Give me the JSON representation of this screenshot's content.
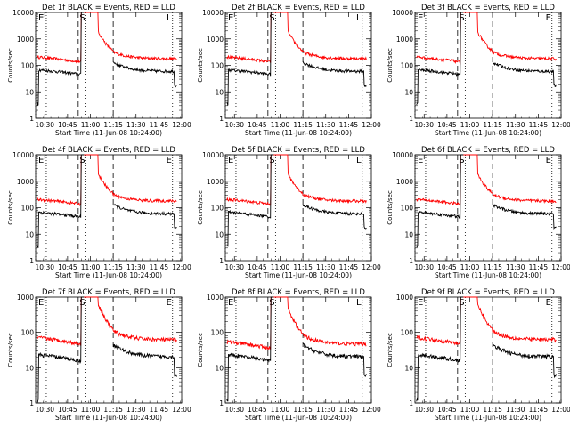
{
  "chart_data": [
    {
      "type": "line",
      "title": "Det 1f BLACK = Events, RED = LLD",
      "xlabel": "Start Time (11-Jun-08 10:24:00)",
      "ylabel": "Counts/sec",
      "yscale": "log",
      "ylim": [
        1,
        10000
      ],
      "xlim": [
        "10:24",
        "12:00"
      ],
      "x_ticks": [
        "10:30",
        "10:45",
        "11:00",
        "11:15",
        "11:30",
        "11:45",
        "12:00"
      ],
      "y_ticks": [
        "1",
        "10",
        "100",
        "1000",
        "10000"
      ],
      "markers": [
        {
          "label": "E",
          "time": "10:24",
          "style": "dotted"
        },
        {
          "label": "",
          "time": "10:31",
          "style": "dotted"
        },
        {
          "label": "",
          "time": "10:52",
          "style": "dashed"
        },
        {
          "label": "S",
          "time": "10:57",
          "style": "dotted"
        },
        {
          "label": "",
          "time": "11:15",
          "style": "dashed"
        },
        {
          "label": "L",
          "time": "11:54",
          "style": "dotted"
        }
      ],
      "series": [
        {
          "name": "LLD",
          "color": "#ff0000",
          "level": "high"
        },
        {
          "name": "Events",
          "color": "#000000",
          "level": "low"
        }
      ]
    },
    {
      "type": "line",
      "title": "Det 2f BLACK = Events, RED = LLD",
      "xlabel": "Start Time (11-Jun-08 10:24:00)",
      "ylabel": "Counts/sec",
      "yscale": "log",
      "ylim": [
        1,
        10000
      ],
      "xlim": [
        "10:24",
        "12:00"
      ],
      "x_ticks": [
        "10:30",
        "10:45",
        "11:00",
        "11:15",
        "11:30",
        "11:45",
        "12:00"
      ],
      "y_ticks": [
        "1",
        "10",
        "100",
        "1000",
        "10000"
      ],
      "markers": [
        {
          "label": "E",
          "time": "10:24",
          "style": "dotted"
        },
        {
          "label": "",
          "time": "10:31",
          "style": "dotted"
        },
        {
          "label": "",
          "time": "10:52",
          "style": "dashed"
        },
        {
          "label": "S",
          "time": "10:57",
          "style": "dotted"
        },
        {
          "label": "",
          "time": "11:15",
          "style": "dashed"
        },
        {
          "label": "L",
          "time": "11:54",
          "style": "dotted"
        }
      ],
      "series": [
        {
          "name": "LLD",
          "color": "#ff0000",
          "level": "high"
        },
        {
          "name": "Events",
          "color": "#000000",
          "level": "low"
        }
      ]
    },
    {
      "type": "line",
      "title": "Det 3f BLACK = Events, RED = LLD",
      "xlabel": "Start Time (11-Jun-08 10:24:00)",
      "ylabel": "Counts/sec",
      "yscale": "log",
      "ylim": [
        1,
        10000
      ],
      "xlim": [
        "10:24",
        "12:00"
      ],
      "x_ticks": [
        "10:30",
        "10:45",
        "11:00",
        "11:15",
        "11:30",
        "11:45",
        "12:00"
      ],
      "y_ticks": [
        "1",
        "10",
        "100",
        "1000",
        "10000"
      ],
      "markers": [
        {
          "label": "E",
          "time": "10:24",
          "style": "dotted"
        },
        {
          "label": "",
          "time": "10:31",
          "style": "dotted"
        },
        {
          "label": "",
          "time": "10:52",
          "style": "dashed"
        },
        {
          "label": "S",
          "time": "10:57",
          "style": "dotted"
        },
        {
          "label": "",
          "time": "11:15",
          "style": "dashed"
        },
        {
          "label": "E",
          "time": "11:54",
          "style": "dotted"
        }
      ],
      "series": [
        {
          "name": "LLD",
          "color": "#ff0000",
          "level": "high"
        },
        {
          "name": "Events",
          "color": "#000000",
          "level": "low"
        }
      ]
    },
    {
      "type": "line",
      "title": "Det 4f BLACK = Events, RED = LLD",
      "xlabel": "Start Time (11-Jun-08 10:24:00)",
      "ylabel": "Counts/sec",
      "yscale": "log",
      "ylim": [
        1,
        10000
      ],
      "xlim": [
        "10:24",
        "12:00"
      ],
      "x_ticks": [
        "10:30",
        "10:45",
        "11:00",
        "11:15",
        "11:30",
        "11:45",
        "12:00"
      ],
      "y_ticks": [
        "1",
        "10",
        "100",
        "1000",
        "10000"
      ],
      "markers": [
        {
          "label": "E",
          "time": "10:24",
          "style": "dotted"
        },
        {
          "label": "",
          "time": "10:31",
          "style": "dotted"
        },
        {
          "label": "",
          "time": "10:52",
          "style": "dashed"
        },
        {
          "label": "S",
          "time": "10:57",
          "style": "dotted"
        },
        {
          "label": "",
          "time": "11:15",
          "style": "dashed"
        },
        {
          "label": "E",
          "time": "11:54",
          "style": "dotted"
        }
      ],
      "series": [
        {
          "name": "LLD",
          "color": "#ff0000",
          "level": "high"
        },
        {
          "name": "Events",
          "color": "#000000",
          "level": "low"
        }
      ]
    },
    {
      "type": "line",
      "title": "Det 5f BLACK = Events, RED = LLD",
      "xlabel": "Start Time (11-Jun-08 10:24:00)",
      "ylabel": "Counts/sec",
      "yscale": "log",
      "ylim": [
        1,
        10000
      ],
      "xlim": [
        "10:24",
        "12:00"
      ],
      "x_ticks": [
        "10:30",
        "10:45",
        "11:00",
        "11:15",
        "11:30",
        "11:45",
        "12:00"
      ],
      "y_ticks": [
        "1",
        "10",
        "100",
        "1000",
        "10000"
      ],
      "markers": [
        {
          "label": "E",
          "time": "10:24",
          "style": "dotted"
        },
        {
          "label": "",
          "time": "10:31",
          "style": "dotted"
        },
        {
          "label": "",
          "time": "10:52",
          "style": "dashed"
        },
        {
          "label": "S",
          "time": "10:57",
          "style": "dotted"
        },
        {
          "label": "",
          "time": "11:15",
          "style": "dashed"
        },
        {
          "label": "L",
          "time": "11:54",
          "style": "dotted"
        }
      ],
      "series": [
        {
          "name": "LLD",
          "color": "#ff0000",
          "level": "high"
        },
        {
          "name": "Events",
          "color": "#000000",
          "level": "low"
        }
      ]
    },
    {
      "type": "line",
      "title": "Det 6f BLACK = Events, RED = LLD",
      "xlabel": "Start Time (11-Jun-08 10:24:00)",
      "ylabel": "Counts/sec",
      "yscale": "log",
      "ylim": [
        1,
        10000
      ],
      "xlim": [
        "10:24",
        "12:00"
      ],
      "x_ticks": [
        "10:30",
        "10:45",
        "11:00",
        "11:15",
        "11:30",
        "11:45",
        "12:00"
      ],
      "y_ticks": [
        "1",
        "10",
        "100",
        "1000",
        "10000"
      ],
      "markers": [
        {
          "label": "E",
          "time": "10:24",
          "style": "dotted"
        },
        {
          "label": "",
          "time": "10:31",
          "style": "dotted"
        },
        {
          "label": "",
          "time": "10:52",
          "style": "dashed"
        },
        {
          "label": "S",
          "time": "10:57",
          "style": "dotted"
        },
        {
          "label": "",
          "time": "11:15",
          "style": "dashed"
        },
        {
          "label": "E",
          "time": "11:54",
          "style": "dotted"
        }
      ],
      "series": [
        {
          "name": "LLD",
          "color": "#ff0000",
          "level": "high"
        },
        {
          "name": "Events",
          "color": "#000000",
          "level": "low"
        }
      ]
    },
    {
      "type": "line",
      "title": "Det 7f BLACK = Events, RED = LLD",
      "xlabel": "Start Time (11-Jun-08 10:24:00)",
      "ylabel": "Counts/sec",
      "yscale": "log",
      "ylim": [
        1,
        1000
      ],
      "xlim": [
        "10:24",
        "12:00"
      ],
      "x_ticks": [
        "10:30",
        "10:45",
        "11:00",
        "11:15",
        "11:30",
        "11:45",
        "12:00"
      ],
      "y_ticks": [
        "1",
        "10",
        "100",
        "1000"
      ],
      "markers": [
        {
          "label": "E",
          "time": "10:24",
          "style": "dotted"
        },
        {
          "label": "",
          "time": "10:31",
          "style": "dotted"
        },
        {
          "label": "",
          "time": "10:52",
          "style": "dashed"
        },
        {
          "label": "S",
          "time": "10:57",
          "style": "dotted"
        },
        {
          "label": "",
          "time": "11:15",
          "style": "dashed"
        },
        {
          "label": "E",
          "time": "11:54",
          "style": "dotted"
        }
      ],
      "series": [
        {
          "name": "LLD",
          "color": "#ff0000",
          "level": "mid"
        },
        {
          "name": "Events",
          "color": "#000000",
          "level": "low"
        }
      ]
    },
    {
      "type": "line",
      "title": "Det 8f BLACK = Events, RED = LLD",
      "xlabel": "Start Time (11-Jun-08 10:24:00)",
      "ylabel": "Counts/sec",
      "yscale": "log",
      "ylim": [
        1,
        1000
      ],
      "xlim": [
        "10:24",
        "12:00"
      ],
      "x_ticks": [
        "10:30",
        "10:45",
        "11:00",
        "11:15",
        "11:30",
        "11:45",
        "12:00"
      ],
      "y_ticks": [
        "1",
        "10",
        "100",
        "1000"
      ],
      "markers": [
        {
          "label": "E",
          "time": "10:24",
          "style": "dotted"
        },
        {
          "label": "",
          "time": "10:31",
          "style": "dotted"
        },
        {
          "label": "",
          "time": "10:52",
          "style": "dashed"
        },
        {
          "label": "S",
          "time": "10:57",
          "style": "dotted"
        },
        {
          "label": "",
          "time": "11:15",
          "style": "dashed"
        },
        {
          "label": "L",
          "time": "11:54",
          "style": "dotted"
        }
      ],
      "series": [
        {
          "name": "LLD",
          "color": "#ff0000",
          "level": "high"
        },
        {
          "name": "Events",
          "color": "#000000",
          "level": "low"
        }
      ]
    },
    {
      "type": "line",
      "title": "Det 9f BLACK = Events, RED = LLD",
      "xlabel": "Start Time (11-Jun-08 10:24:00)",
      "ylabel": "Counts/sec",
      "yscale": "log",
      "ylim": [
        1,
        1000
      ],
      "xlim": [
        "10:24",
        "12:00"
      ],
      "x_ticks": [
        "10:30",
        "10:45",
        "11:00",
        "11:15",
        "11:30",
        "11:45",
        "12:00"
      ],
      "y_ticks": [
        "1",
        "10",
        "100",
        "1000"
      ],
      "markers": [
        {
          "label": "E",
          "time": "10:24",
          "style": "dotted"
        },
        {
          "label": "",
          "time": "10:31",
          "style": "dotted"
        },
        {
          "label": "",
          "time": "10:52",
          "style": "dashed"
        },
        {
          "label": "S",
          "time": "10:57",
          "style": "dotted"
        },
        {
          "label": "",
          "time": "11:15",
          "style": "dashed"
        },
        {
          "label": "E",
          "time": "11:54",
          "style": "dotted"
        }
      ],
      "series": [
        {
          "name": "LLD",
          "color": "#ff0000",
          "level": "mid"
        },
        {
          "name": "Events",
          "color": "#000000",
          "level": "low"
        }
      ]
    }
  ]
}
